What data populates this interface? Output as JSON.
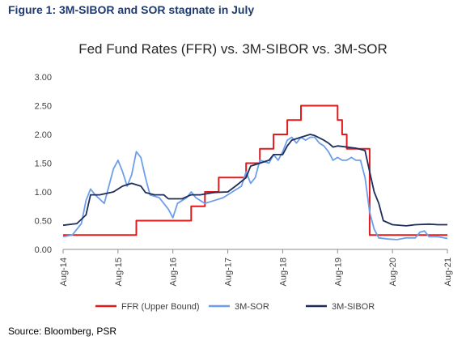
{
  "figure_title": "Figure 1: 3M-SIBOR and SOR stagnate in July",
  "source": "Source: Bloomberg, PSR",
  "chart_data": {
    "type": "line",
    "title": "Fed Fund Rates (FFR) vs. 3M-SIBOR vs. 3M-SOR",
    "xlabel": "",
    "ylabel": "",
    "x_range": [
      "2014-08",
      "2021-08"
    ],
    "ylim": [
      0,
      3
    ],
    "y_ticks": [
      "0.00",
      "0.50",
      "1.00",
      "1.50",
      "2.00",
      "2.50",
      "3.00"
    ],
    "x_ticks": [
      {
        "date": "2014-08",
        "label": "Aug-14"
      },
      {
        "date": "2015-08",
        "label": "Aug-15"
      },
      {
        "date": "2016-08",
        "label": "Aug-16"
      },
      {
        "date": "2017-08",
        "label": "Aug-17"
      },
      {
        "date": "2018-08",
        "label": "Aug-18"
      },
      {
        "date": "2019-08",
        "label": "Aug-19"
      },
      {
        "date": "2020-08",
        "label": "Aug-20"
      },
      {
        "date": "2021-08",
        "label": "Aug-21"
      }
    ],
    "grid": false,
    "legend_position": "bottom",
    "series": [
      {
        "name": "FFR (Upper Bound)",
        "color": "#e31a1c",
        "step": true,
        "points": [
          [
            "2014-08",
            0.25
          ],
          [
            "2015-12",
            0.5
          ],
          [
            "2016-12",
            0.75
          ],
          [
            "2017-03",
            1.0
          ],
          [
            "2017-06",
            1.25
          ],
          [
            "2017-12",
            1.5
          ],
          [
            "2018-03",
            1.75
          ],
          [
            "2018-06",
            2.0
          ],
          [
            "2018-09",
            2.25
          ],
          [
            "2018-12",
            2.5
          ],
          [
            "2019-08",
            2.25
          ],
          [
            "2019-09",
            2.0
          ],
          [
            "2019-10",
            1.75
          ],
          [
            "2020-03",
            0.25
          ],
          [
            "2021-08",
            0.25
          ]
        ]
      },
      {
        "name": "3M-SOR",
        "color": "#6d9eeb",
        "step": false,
        "points": [
          [
            "2014-08",
            0.22
          ],
          [
            "2014-10",
            0.25
          ],
          [
            "2014-12",
            0.45
          ],
          [
            "2015-01",
            0.85
          ],
          [
            "2015-02",
            1.05
          ],
          [
            "2015-03",
            0.95
          ],
          [
            "2015-05",
            0.8
          ],
          [
            "2015-07",
            1.4
          ],
          [
            "2015-08",
            1.55
          ],
          [
            "2015-09",
            1.35
          ],
          [
            "2015-10",
            1.1
          ],
          [
            "2015-11",
            1.3
          ],
          [
            "2015-12",
            1.7
          ],
          [
            "2016-01",
            1.6
          ],
          [
            "2016-02",
            1.25
          ],
          [
            "2016-03",
            0.95
          ],
          [
            "2016-05",
            0.9
          ],
          [
            "2016-07",
            0.7
          ],
          [
            "2016-08",
            0.55
          ],
          [
            "2016-09",
            0.8
          ],
          [
            "2016-10",
            0.85
          ],
          [
            "2016-11",
            0.9
          ],
          [
            "2016-12",
            1.0
          ],
          [
            "2017-01",
            0.9
          ],
          [
            "2017-03",
            0.8
          ],
          [
            "2017-05",
            0.85
          ],
          [
            "2017-07",
            0.9
          ],
          [
            "2017-09",
            1.0
          ],
          [
            "2017-11",
            1.1
          ],
          [
            "2017-12",
            1.35
          ],
          [
            "2018-01",
            1.15
          ],
          [
            "2018-02",
            1.25
          ],
          [
            "2018-03",
            1.55
          ],
          [
            "2018-05",
            1.5
          ],
          [
            "2018-06",
            1.65
          ],
          [
            "2018-07",
            1.55
          ],
          [
            "2018-08",
            1.7
          ],
          [
            "2018-09",
            1.9
          ],
          [
            "2018-10",
            1.95
          ],
          [
            "2018-11",
            1.85
          ],
          [
            "2018-12",
            1.95
          ],
          [
            "2019-01",
            1.9
          ],
          [
            "2019-02",
            1.95
          ],
          [
            "2019-03",
            1.95
          ],
          [
            "2019-04",
            1.85
          ],
          [
            "2019-05",
            1.8
          ],
          [
            "2019-06",
            1.7
          ],
          [
            "2019-07",
            1.55
          ],
          [
            "2019-08",
            1.6
          ],
          [
            "2019-09",
            1.55
          ],
          [
            "2019-10",
            1.55
          ],
          [
            "2019-11",
            1.6
          ],
          [
            "2019-12",
            1.55
          ],
          [
            "2020-01",
            1.55
          ],
          [
            "2020-02",
            1.25
          ],
          [
            "2020-03",
            0.65
          ],
          [
            "2020-04",
            0.35
          ],
          [
            "2020-05",
            0.2
          ],
          [
            "2020-07",
            0.18
          ],
          [
            "2020-09",
            0.17
          ],
          [
            "2020-11",
            0.2
          ],
          [
            "2021-01",
            0.2
          ],
          [
            "2021-02",
            0.3
          ],
          [
            "2021-03",
            0.32
          ],
          [
            "2021-04",
            0.22
          ],
          [
            "2021-06",
            0.22
          ],
          [
            "2021-08",
            0.19
          ]
        ]
      },
      {
        "name": "3M-SIBOR",
        "color": "#1f2d5a",
        "step": false,
        "points": [
          [
            "2014-08",
            0.42
          ],
          [
            "2014-11",
            0.45
          ],
          [
            "2015-01",
            0.6
          ],
          [
            "2015-02",
            0.95
          ],
          [
            "2015-04",
            0.95
          ],
          [
            "2015-07",
            1.0
          ],
          [
            "2015-09",
            1.1
          ],
          [
            "2015-11",
            1.15
          ],
          [
            "2016-01",
            1.1
          ],
          [
            "2016-02",
            0.99
          ],
          [
            "2016-04",
            0.95
          ],
          [
            "2016-06",
            0.95
          ],
          [
            "2016-07",
            0.88
          ],
          [
            "2016-10",
            0.88
          ],
          [
            "2016-12",
            0.95
          ],
          [
            "2017-02",
            0.95
          ],
          [
            "2017-05",
            0.99
          ],
          [
            "2017-08",
            1.0
          ],
          [
            "2017-10",
            1.12
          ],
          [
            "2017-12",
            1.25
          ],
          [
            "2018-01",
            1.45
          ],
          [
            "2018-03",
            1.5
          ],
          [
            "2018-05",
            1.55
          ],
          [
            "2018-06",
            1.65
          ],
          [
            "2018-08",
            1.65
          ],
          [
            "2018-09",
            1.8
          ],
          [
            "2018-10",
            1.9
          ],
          [
            "2018-12",
            1.95
          ],
          [
            "2019-02",
            2.0
          ],
          [
            "2019-03",
            1.98
          ],
          [
            "2019-05",
            1.9
          ],
          [
            "2019-06",
            1.85
          ],
          [
            "2019-07",
            1.78
          ],
          [
            "2019-08",
            1.8
          ],
          [
            "2019-12",
            1.76
          ],
          [
            "2020-02",
            1.72
          ],
          [
            "2020-03",
            1.35
          ],
          [
            "2020-04",
            1.0
          ],
          [
            "2020-05",
            0.8
          ],
          [
            "2020-06",
            0.5
          ],
          [
            "2020-08",
            0.43
          ],
          [
            "2020-11",
            0.41
          ],
          [
            "2021-01",
            0.43
          ],
          [
            "2021-04",
            0.44
          ],
          [
            "2021-06",
            0.43
          ],
          [
            "2021-08",
            0.43
          ]
        ]
      }
    ]
  }
}
